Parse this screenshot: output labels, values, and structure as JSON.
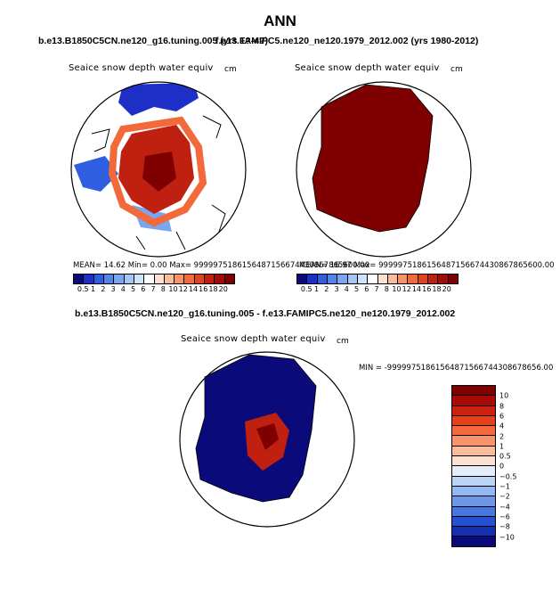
{
  "title": "ANN",
  "panels": [
    {
      "case": "b.e13.B1850C5CN.ne120_g16.tuning.005 (yrs 1?-4?)",
      "field": "Seaice snow depth water equiv",
      "unit": "cm",
      "stats": "MEAN=  14.62  Min=   0.00  Max= 9999975186156487156674430867865600.00"
    },
    {
      "case": "f.e13.FAMIPC5.ne120_ne120.1979_2012.002 (yrs 1980-2012)",
      "field": "Seaice snow depth water equiv",
      "unit": "cm",
      "stats": "MEAN=  16.97  Max=  9999975186156487156674430867865600.00"
    },
    {
      "case": "b.e13.B1850C5CN.ne120_g16.tuning.005 - f.e13.FAMIPC5.ne120_ne120.1979_2012.002",
      "field": "Seaice snow depth water equiv",
      "unit": "cm",
      "stats": "MIN = -99999751861564871566744308678656.00"
    }
  ],
  "colorbar_top": {
    "labels": [
      "0.5",
      "1",
      "2",
      "3",
      "4",
      "5",
      "6",
      "7",
      "8",
      "10",
      "12",
      "14",
      "16",
      "18",
      "20"
    ],
    "colors": [
      "#0a0a7a",
      "#1e2fc8",
      "#2f5fe0",
      "#4f86e8",
      "#78a6f0",
      "#a5c5f5",
      "#d0e2fa",
      "#ffffff",
      "#fde0cf",
      "#fbbc9c",
      "#f79468",
      "#f26a3a",
      "#e04320",
      "#c02010",
      "#a00c08",
      "#7e0000"
    ]
  },
  "colorbar_diff": {
    "labels": [
      "10",
      "8",
      "6",
      "4",
      "2",
      "1",
      "0.5",
      "0",
      "−0.5",
      "−1",
      "−2",
      "−4",
      "−6",
      "−8",
      "−10"
    ],
    "colors": [
      "#7e0000",
      "#a80a06",
      "#cc2010",
      "#e84018",
      "#f56a3a",
      "#f8946a",
      "#fbbc9c",
      "#fde0cf",
      "#e4eefb",
      "#bcd4f5",
      "#94b8ef",
      "#6d98e8",
      "#4676e0",
      "#2652d2",
      "#1530b0",
      "#0a0a7a"
    ]
  }
}
